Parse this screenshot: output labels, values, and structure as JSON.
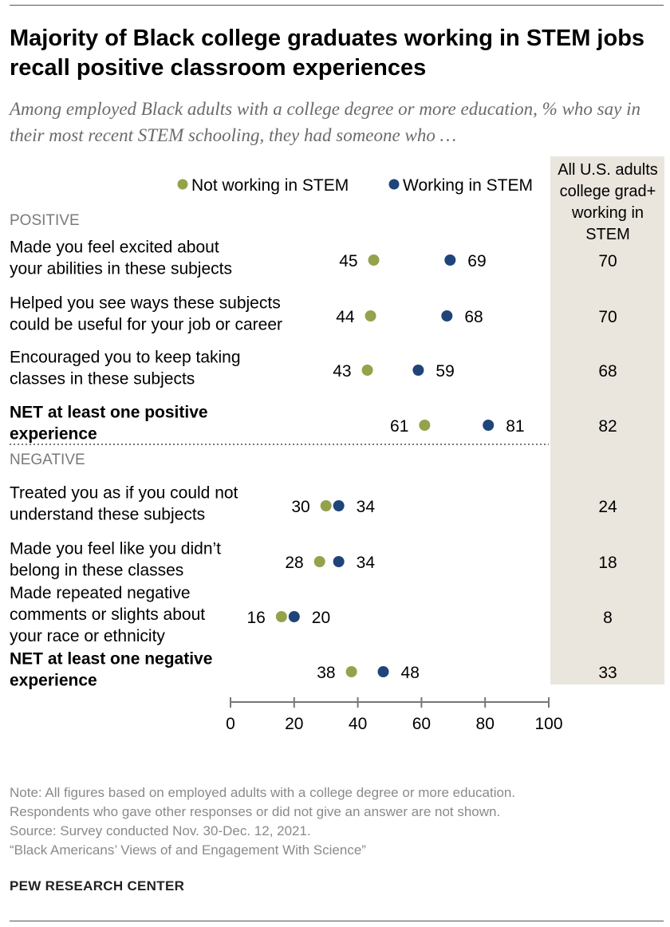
{
  "header": {
    "title": "Majority of Black college graduates working in STEM jobs recall positive classroom experiences",
    "subtitle": "Among employed Black adults with a college degree or more education, % who say in their most recent STEM schooling, they had someone who …"
  },
  "chart_data": {
    "type": "scatter",
    "legend_placement": "top",
    "series": [
      {
        "name": "Not working in STEM",
        "color": "#94a24b"
      },
      {
        "name": "Working in STEM",
        "color": "#1f4479"
      }
    ],
    "side_column": {
      "header_lines": [
        "All U.S. adults",
        "college grad+",
        "working in",
        "STEM"
      ]
    },
    "sections": [
      {
        "label": "POSITIVE",
        "rows": [
          {
            "label_lines": [
              "Made you feel excited about",
              "your abilities in these subjects"
            ],
            "bold": false,
            "not_stem": 45,
            "stem": 69,
            "all_us": "70"
          },
          {
            "label_lines": [
              "Helped you see ways these subjects",
              "could be useful for your job or career"
            ],
            "bold": false,
            "not_stem": 44,
            "stem": 68,
            "all_us": "70"
          },
          {
            "label_lines": [
              "Encouraged you to keep taking",
              "classes in these subjects"
            ],
            "bold": false,
            "not_stem": 43,
            "stem": 59,
            "all_us": "68"
          },
          {
            "label_lines": [
              "NET at least one positive",
              "experience"
            ],
            "bold": true,
            "not_stem": 61,
            "stem": 81,
            "all_us": "82"
          }
        ]
      },
      {
        "label": "NEGATIVE",
        "rows": [
          {
            "label_lines": [
              "Treated you as if you could not",
              "understand these subjects"
            ],
            "bold": false,
            "not_stem": 30,
            "stem": 34,
            "all_us": "24"
          },
          {
            "label_lines": [
              "Made you feel like you didn’t",
              "belong in these classes"
            ],
            "bold": false,
            "not_stem": 28,
            "stem": 34,
            "all_us": "18"
          },
          {
            "label_lines": [
              "Made repeated negative",
              "comments or slights about",
              "your race or ethnicity"
            ],
            "bold": false,
            "not_stem": 16,
            "stem": 20,
            "all_us": "8"
          },
          {
            "label_lines": [
              "NET at least one negative",
              "experience"
            ],
            "bold": true,
            "not_stem": 38,
            "stem": 48,
            "all_us": "33"
          }
        ]
      }
    ],
    "xlim": [
      0,
      100
    ],
    "xticks": [
      0,
      20,
      40,
      60,
      80,
      100
    ],
    "grid": false
  },
  "notes": [
    "Note: All figures based on employed adults with a college degree or more education.",
    "Respondents who gave other responses or did not give an answer are not shown.",
    "Source: Survey conducted Nov. 30-Dec. 12, 2021.",
    "“Black Americans’ Views of and Engagement With Science”"
  ],
  "footer": {
    "brand": "PEW RESEARCH CENTER"
  }
}
